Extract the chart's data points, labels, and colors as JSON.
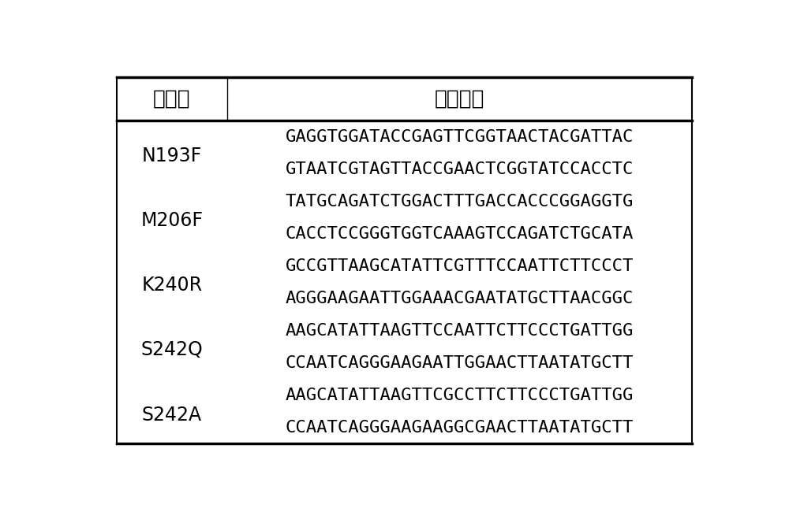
{
  "header_col1": "突变体",
  "header_col2": "引物序列",
  "rows": [
    {
      "mutant": "N193F",
      "sequences": [
        "GAGGTGGATACCGAGTTCGGTAACTACGATTAC",
        "GTAATCGTAGTTACCGAACTCGGTATCCACCTC"
      ]
    },
    {
      "mutant": "M206F",
      "sequences": [
        "TATGCAGATCTGGACTTTGACCACCCGGAGGTG",
        "CACCTCCGGGTGGTCAAAGTCCAGATCTGCATA"
      ]
    },
    {
      "mutant": "K240R",
      "sequences": [
        "GCCGTTAAGCATATTCGTTTCCAATTCTTCCCT",
        "AGGGAAGAATTGGAAACGAATATGCTTAACGGC"
      ]
    },
    {
      "mutant": "S242Q",
      "sequences": [
        "AAGCATATTAAGTTCCAATTCTTCCCTGATTGG",
        "CCAATCAGGGAAGAATTGGAACTTAATATGCTT"
      ]
    },
    {
      "mutant": "S242A",
      "sequences": [
        "AAGCATATTAAGTTCGCCTTCTTCCCTGATTGG",
        "CCAATCAGGGAAGAAGGCGAACTTAATATGCTT"
      ]
    }
  ],
  "bg_color": "#ffffff",
  "text_color": "#000000",
  "header_fontsize": 19,
  "cell_fontsize": 16,
  "mutant_fontsize": 17,
  "border_color": "#000000",
  "fig_width": 10.0,
  "fig_height": 6.5
}
